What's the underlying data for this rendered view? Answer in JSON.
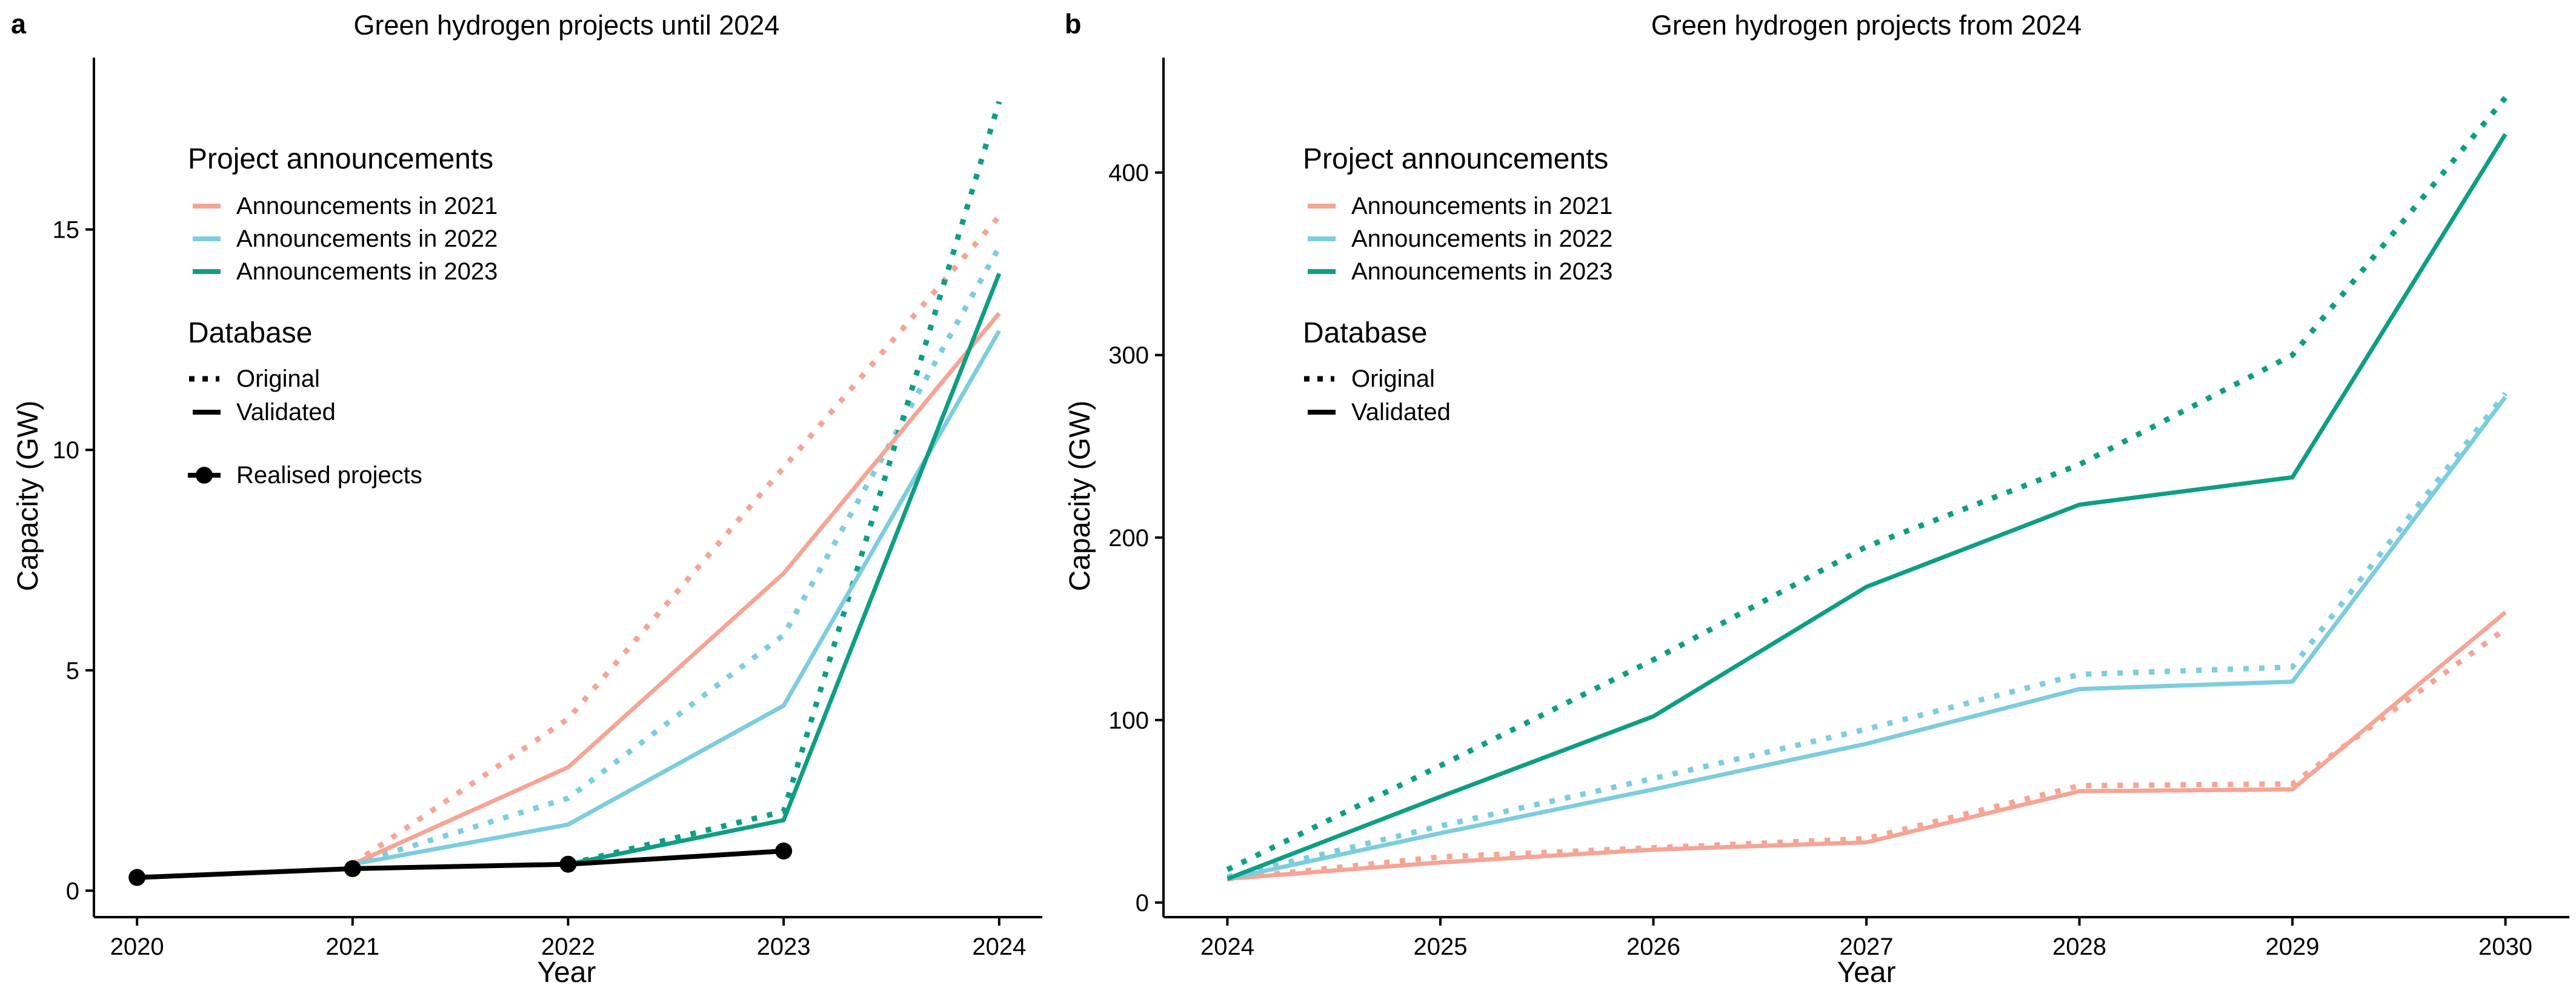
{
  "colors": {
    "announcements_2021": "#F5A595",
    "announcements_2022": "#7CCDDE",
    "announcements_2023": "#0E9E83",
    "realised": "#000000"
  },
  "chart_data": [
    {
      "type": "line",
      "panel_label": "a",
      "title": "Green hydrogen projects until 2024",
      "xlabel": "Year",
      "ylabel": "Capacity (GW)",
      "x": [
        2020,
        2021,
        2022,
        2023,
        2024
      ],
      "xticks": [
        "2020",
        "2021",
        "2022",
        "2023",
        "2024"
      ],
      "yticks": [
        "0",
        "5",
        "10",
        "15"
      ],
      "xlim": [
        2019.8,
        2024.2
      ],
      "ylim": [
        -0.6,
        18.9
      ],
      "grid": false,
      "series": [
        {
          "announcement": "2021",
          "database": "Original",
          "x": [
            2021,
            2022,
            2023,
            2024
          ],
          "values": [
            0.6,
            3.9,
            9.6,
            15.3
          ]
        },
        {
          "announcement": "2021",
          "database": "Validated",
          "x": [
            2021,
            2022,
            2023,
            2024
          ],
          "values": [
            0.6,
            2.8,
            7.2,
            13.1
          ]
        },
        {
          "announcement": "2022",
          "database": "Original",
          "x": [
            2021,
            2022,
            2023,
            2024
          ],
          "values": [
            0.6,
            2.1,
            5.8,
            14.6
          ]
        },
        {
          "announcement": "2022",
          "database": "Validated",
          "x": [
            2021,
            2022,
            2023,
            2024
          ],
          "values": [
            0.6,
            1.5,
            4.2,
            12.7
          ]
        },
        {
          "announcement": "2023",
          "database": "Original",
          "x": [
            2022,
            2023,
            2024
          ],
          "values": [
            0.6,
            1.8,
            17.9
          ]
        },
        {
          "announcement": "2023",
          "database": "Validated",
          "x": [
            2022,
            2023,
            2024
          ],
          "values": [
            0.6,
            1.6,
            14.0
          ]
        },
        {
          "announcement": "Realised projects",
          "database": "Realised",
          "x": [
            2020,
            2021,
            2022,
            2023
          ],
          "values": [
            0.3,
            0.5,
            0.6,
            0.9
          ]
        }
      ],
      "legend": {
        "placement": "top-left",
        "announcements_title": "Project announcements",
        "announcements": [
          "Announcements in 2021",
          "Announcements in 2022",
          "Announcements in 2023"
        ],
        "database_title": "Database",
        "database": [
          "Original",
          "Validated"
        ],
        "realised": "Realised projects"
      }
    },
    {
      "type": "line",
      "panel_label": "b",
      "title": "Green hydrogen projects from 2024",
      "xlabel": "Year",
      "ylabel": "Capacity (GW)",
      "x": [
        2024,
        2025,
        2026,
        2027,
        2028,
        2029,
        2030
      ],
      "xticks": [
        "2024",
        "2025",
        "2026",
        "2027",
        "2028",
        "2029",
        "2030"
      ],
      "yticks": [
        "0",
        "100",
        "200",
        "300",
        "400"
      ],
      "xlim": [
        2023.7,
        2030.3
      ],
      "ylim": [
        -8,
        463
      ],
      "grid": false,
      "series": [
        {
          "announcement": "2021",
          "database": "Original",
          "x": [
            2024,
            2025,
            2026,
            2027,
            2028,
            2029,
            2030
          ],
          "values": [
            13,
            25,
            30,
            35,
            64,
            65,
            150
          ]
        },
        {
          "announcement": "2021",
          "database": "Validated",
          "x": [
            2024,
            2025,
            2026,
            2027,
            2028,
            2029,
            2030
          ],
          "values": [
            13,
            22,
            29,
            33,
            61,
            62,
            159
          ]
        },
        {
          "announcement": "2022",
          "database": "Original",
          "x": [
            2024,
            2025,
            2026,
            2027,
            2028,
            2029,
            2030
          ],
          "values": [
            14,
            42,
            68,
            95,
            125,
            129,
            279
          ]
        },
        {
          "announcement": "2022",
          "database": "Validated",
          "x": [
            2024,
            2025,
            2026,
            2027,
            2028,
            2029,
            2030
          ],
          "values": [
            13,
            38,
            62,
            87,
            117,
            121,
            277
          ]
        },
        {
          "announcement": "2023",
          "database": "Original",
          "x": [
            2024,
            2025,
            2026,
            2027,
            2028,
            2029,
            2030
          ],
          "values": [
            18,
            75,
            133,
            195,
            240,
            300,
            441
          ]
        },
        {
          "announcement": "2023",
          "database": "Validated",
          "x": [
            2024,
            2025,
            2026,
            2027,
            2028,
            2029,
            2030
          ],
          "values": [
            13,
            58,
            102,
            173,
            218,
            233,
            421
          ]
        }
      ],
      "legend": {
        "placement": "top-left",
        "announcements_title": "Project announcements",
        "announcements": [
          "Announcements in 2021",
          "Announcements in 2022",
          "Announcements in 2023"
        ],
        "database_title": "Database",
        "database": [
          "Original",
          "Validated"
        ]
      }
    }
  ]
}
